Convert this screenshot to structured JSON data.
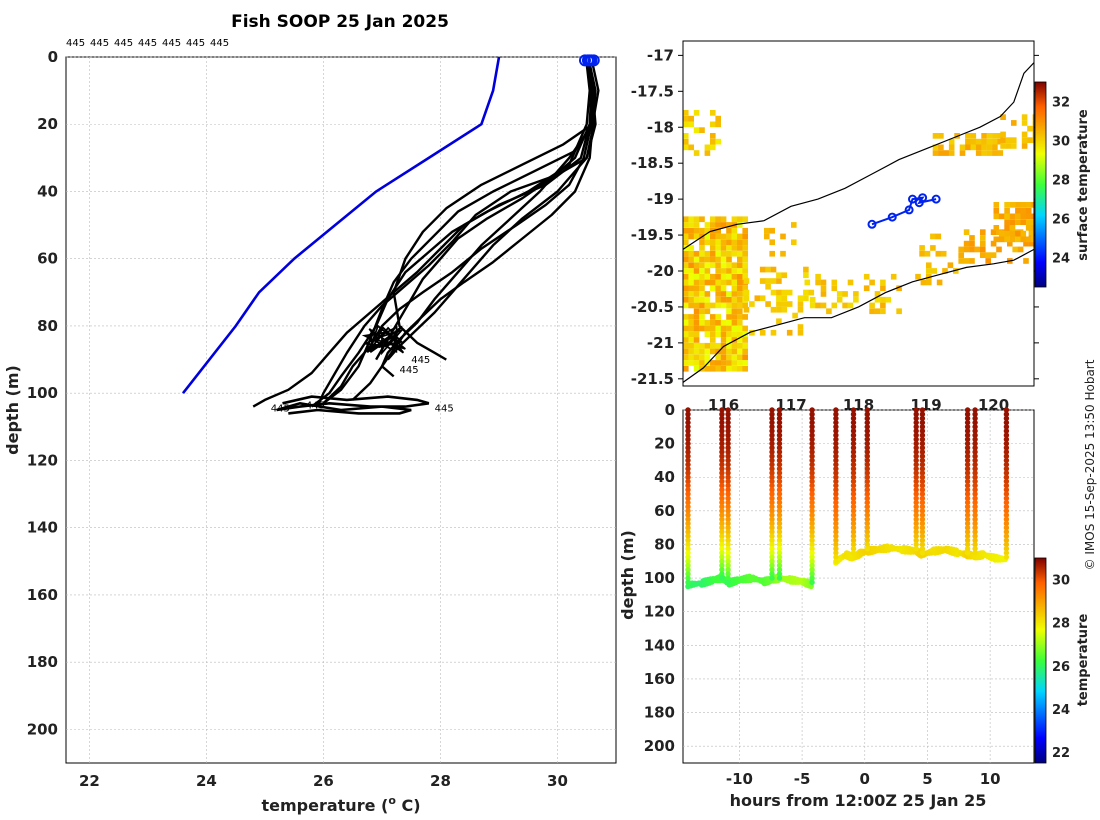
{
  "title": "Fish SOOP 25 Jan 2025",
  "credit": "© IMOS 15-Sep-2025 13:50 Hobart",
  "colors": {
    "profile": "#000000",
    "climatology": "#0000dd",
    "marker": "#0022ee",
    "grid": "#bbbbbb"
  },
  "chart_data": [
    {
      "type": "line",
      "panel": "profiles",
      "xlabel": "temperature (",
      "xlabel_sup": "o",
      "xlabel_tail": " C)",
      "ylabel": "depth (m)",
      "xlim": [
        21.6,
        31.0
      ],
      "ylim": [
        210,
        0
      ],
      "xticks": [
        22,
        24,
        26,
        28,
        30
      ],
      "yticks": [
        0,
        20,
        40,
        60,
        80,
        100,
        120,
        140,
        160,
        180,
        200
      ],
      "top_labels": [
        "445",
        "445",
        "445",
        "445",
        "445",
        "445",
        "445"
      ],
      "inline_labels": [
        "445",
        "445",
        "445",
        "445",
        "445"
      ],
      "climatology": {
        "name": "climatology",
        "x": [
          29.0,
          28.9,
          28.7,
          27.8,
          26.9,
          26.2,
          25.5,
          24.9,
          24.5,
          23.6
        ],
        "y": [
          0,
          10,
          20,
          30,
          40,
          50,
          60,
          70,
          80,
          100
        ]
      },
      "profile_series": [
        {
          "name": "p1",
          "x": [
            30.55,
            30.6,
            30.62,
            30.5,
            30.0,
            29.2,
            28.6,
            28.2,
            27.8,
            27.4,
            27.0,
            26.7,
            26.4,
            26.2,
            26.0,
            25.9
          ],
          "y": [
            2,
            10,
            20,
            30,
            35,
            40,
            47,
            55,
            62,
            68,
            74,
            80,
            88,
            94,
            100,
            104
          ]
        },
        {
          "name": "p2",
          "x": [
            30.52,
            30.58,
            30.55,
            30.4,
            29.8,
            29.0,
            28.4,
            28.0,
            27.6,
            27.2,
            26.8,
            26.4,
            26.1,
            25.8,
            25.4,
            25.0,
            24.8
          ],
          "y": [
            2,
            10,
            20,
            30,
            38,
            44,
            50,
            57,
            64,
            70,
            76,
            82,
            88,
            94,
            99,
            102,
            104
          ]
        },
        {
          "name": "p3",
          "x": [
            30.5,
            30.62,
            30.6,
            30.3,
            29.6,
            28.9,
            28.3,
            27.9,
            27.5,
            27.2,
            27.0,
            26.8,
            26.6,
            26.3,
            26.0
          ],
          "y": [
            2,
            10,
            20,
            28,
            34,
            40,
            46,
            53,
            60,
            67,
            75,
            84,
            92,
            99,
            103
          ]
        },
        {
          "name": "p4",
          "x": [
            30.55,
            30.65,
            30.6,
            30.1,
            29.4,
            28.7,
            28.1,
            27.7,
            27.4,
            27.2,
            27.3,
            27.6,
            27.9,
            28.1
          ],
          "y": [
            2,
            10,
            20,
            26,
            32,
            38,
            45,
            52,
            60,
            70,
            80,
            85,
            88,
            90
          ]
        },
        {
          "name": "p5",
          "x": [
            30.6,
            30.7,
            30.6,
            30.2,
            29.7,
            29.2,
            28.7,
            28.3,
            27.9,
            27.6,
            27.3,
            27.1,
            27.0,
            27.2
          ],
          "y": [
            2,
            10,
            20,
            30,
            40,
            48,
            56,
            64,
            72,
            79,
            84,
            88,
            92,
            95
          ]
        },
        {
          "name": "p6",
          "x": [
            30.5,
            30.6,
            30.58,
            30.45,
            30.2,
            29.8,
            29.3,
            28.7,
            28.2,
            27.7,
            27.3,
            27.0,
            26.8,
            26.5,
            26.3,
            26.0
          ],
          "y": [
            2,
            10,
            20,
            30,
            38,
            44,
            50,
            57,
            64,
            70,
            75,
            80,
            86,
            92,
            98,
            103
          ]
        },
        {
          "name": "p7",
          "x": [
            30.55,
            30.6,
            30.55,
            30.3,
            29.9,
            29.4,
            28.8,
            28.3,
            28.0,
            27.7,
            27.5,
            27.3,
            27.1,
            26.9
          ],
          "y": [
            2,
            10,
            20,
            30,
            36,
            42,
            48,
            54,
            60,
            66,
            72,
            78,
            84,
            90
          ]
        },
        {
          "name": "p8",
          "x": [
            30.5,
            30.55,
            30.5,
            30.2,
            29.5,
            28.8,
            28.2,
            27.8,
            27.4,
            27.1,
            26.9,
            26.6,
            26.3,
            26.1,
            25.8
          ],
          "y": [
            2,
            10,
            20,
            32,
            40,
            46,
            52,
            58,
            64,
            72,
            80,
            88,
            95,
            100,
            104
          ]
        },
        {
          "name": "p9",
          "x": [
            30.55,
            30.6,
            30.65,
            30.5,
            30.0,
            29.4,
            28.9,
            28.5,
            28.2,
            27.9,
            27.6,
            27.3,
            27.1
          ],
          "y": [
            2,
            10,
            20,
            30,
            40,
            48,
            56,
            64,
            70,
            76,
            81,
            86,
            90
          ]
        },
        {
          "name": "p10",
          "x": [
            30.5,
            30.6,
            30.6,
            30.55,
            30.3,
            29.9,
            29.4,
            28.9,
            28.4,
            28.0,
            27.7,
            27.4,
            27.2,
            27.0,
            26.8,
            26.5
          ],
          "y": [
            2,
            10,
            20,
            30,
            40,
            47,
            54,
            61,
            67,
            72,
            77,
            82,
            87,
            92,
            97,
            102
          ]
        }
      ],
      "bottom_loop": {
        "x": [
          25.3,
          25.8,
          26.4,
          27.1,
          27.6,
          27.8,
          27.4,
          26.8,
          26.1,
          25.6,
          25.2,
          25.6,
          26.3,
          27.0,
          27.5,
          27.3,
          26.6,
          25.9,
          25.4
        ],
        "y": [
          103,
          101,
          102,
          101,
          102,
          103,
          104,
          104,
          103,
          104,
          105,
          103,
          105,
          104,
          105,
          106,
          106,
          105,
          106
        ]
      },
      "markers": {
        "x": [
          30.47,
          30.52,
          30.58,
          30.62,
          30.55
        ],
        "y": [
          1,
          1,
          1,
          1,
          1
        ]
      }
    },
    {
      "type": "heatmap",
      "panel": "surface-temperature-map",
      "xlim": [
        115.4,
        120.6
      ],
      "ylim": [
        -21.6,
        -16.8
      ],
      "yticks": [
        -17,
        -17.5,
        -18,
        -18.5,
        -19,
        -19.5,
        -20,
        -20.5,
        -21,
        -21.5
      ],
      "xticks": [
        116,
        117,
        118,
        119,
        120
      ],
      "colorbar_label": "surface temperature",
      "colorbar_ticks": [
        24,
        26,
        28,
        30,
        32
      ],
      "colorbar_range": [
        22.5,
        33.0
      ],
      "track": {
        "lon": [
          118.2,
          118.5,
          118.75,
          118.8,
          118.95,
          118.9,
          119.15
        ],
        "lat": [
          -19.35,
          -19.25,
          -19.15,
          -19.0,
          -18.98,
          -19.05,
          -19.0
        ]
      },
      "coast_upper": {
        "lon": [
          115.4,
          115.8,
          116.2,
          116.6,
          117.0,
          117.4,
          117.8,
          118.2,
          118.6,
          119.0,
          119.4,
          119.8,
          120.1,
          120.3,
          120.45,
          120.6
        ],
        "lat": [
          -19.7,
          -19.45,
          -19.35,
          -19.3,
          -19.1,
          -19.0,
          -18.85,
          -18.65,
          -18.45,
          -18.3,
          -18.15,
          -18.0,
          -17.85,
          -17.65,
          -17.25,
          -17.1
        ]
      },
      "coast_lower": {
        "lon": [
          115.4,
          115.7,
          116.0,
          116.4,
          116.8,
          117.2,
          117.6,
          118.0,
          118.4,
          118.8,
          119.2,
          119.6,
          120.0,
          120.3,
          120.6
        ],
        "lat": [
          -21.55,
          -21.35,
          -21.05,
          -20.85,
          -20.75,
          -20.65,
          -20.65,
          -20.5,
          -20.3,
          -20.15,
          -20.05,
          -19.95,
          -19.9,
          -19.85,
          -19.7
        ]
      }
    },
    {
      "type": "scatter",
      "panel": "depth-time",
      "xlabel": "hours from 12:00Z 25 Jan 25",
      "ylabel": "depth (m)",
      "xlim": [
        -14.5,
        13.5
      ],
      "ylim": [
        210,
        0
      ],
      "xticks": [
        -10,
        -5,
        0,
        5,
        10
      ],
      "yticks": [
        0,
        20,
        40,
        60,
        80,
        100,
        120,
        140,
        160,
        180,
        200
      ],
      "colorbar_label": "temperature",
      "colorbar_ticks": [
        22,
        24,
        26,
        28,
        30
      ],
      "colorbar_range": [
        21.5,
        31.0
      ],
      "profile_times": [
        -14.1,
        -11.4,
        -10.9,
        -7.4,
        -6.8,
        -4.2,
        -2.3,
        -0.9,
        0.2,
        4.1,
        4.6,
        8.2,
        8.8,
        11.3
      ],
      "profile_bottoms": [
        104,
        100,
        103,
        101,
        100,
        104,
        90,
        86,
        84,
        84,
        86,
        86,
        87,
        89
      ],
      "bottom_track": {
        "t": [
          -14.1,
          -13.0,
          -12.0,
          -11.4,
          -10.9,
          -10.0,
          -9.0,
          -8.0,
          -7.4,
          -6.8,
          -6.0,
          -5.0,
          -4.2
        ],
        "d": [
          104,
          103,
          101,
          100,
          103,
          101,
          100,
          102,
          101,
          100,
          101,
          102,
          104
        ],
        "temp": [
          26.0,
          25.9,
          26.2,
          26.3,
          26.1,
          26.3,
          26.5,
          26.4,
          26.6,
          27.0,
          27.1,
          27.2,
          26.8
        ]
      },
      "shallow_track": {
        "t": [
          -2.3,
          -1.5,
          -0.9,
          -0.3,
          0.2,
          1.0,
          2.0,
          3.0,
          4.1,
          4.6,
          5.5,
          6.5,
          7.5,
          8.2,
          8.8,
          9.5,
          10.3,
          11.3
        ],
        "d": [
          90,
          86,
          88,
          85,
          84,
          83,
          82,
          83,
          84,
          86,
          84,
          83,
          85,
          86,
          87,
          86,
          88,
          89
        ],
        "temp": [
          27.8,
          28.1,
          28.0,
          28.2,
          28.3,
          28.2,
          28.1,
          28.0,
          28.2,
          28.3,
          28.1,
          28.2,
          28.0,
          28.3,
          28.1,
          28.0,
          27.9,
          27.8
        ]
      }
    }
  ]
}
